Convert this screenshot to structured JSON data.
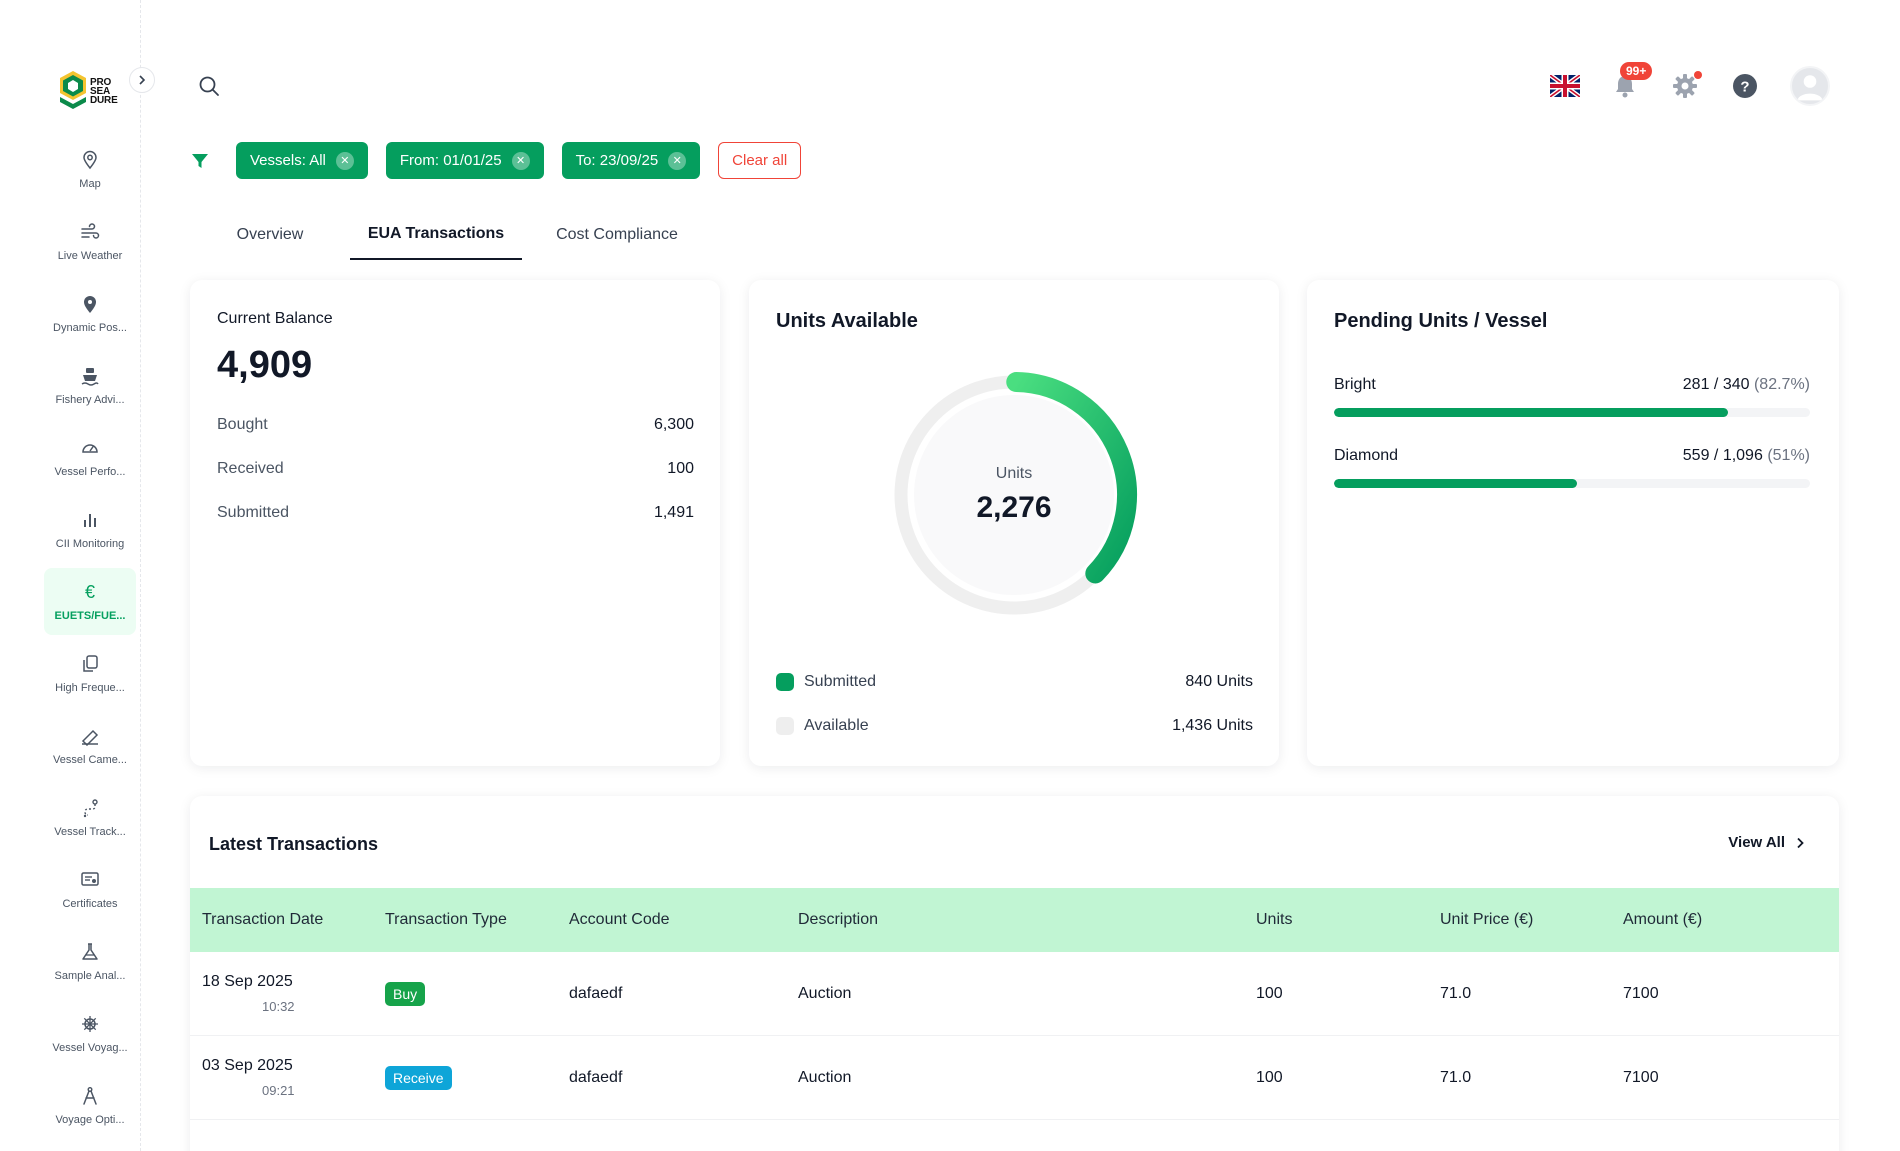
{
  "brand": {
    "logo_text": [
      "PRO",
      "SEA",
      "DURE"
    ]
  },
  "sidebar": {
    "items": [
      {
        "label": "Map",
        "icon": "map-pin-icon"
      },
      {
        "label": "Live Weather",
        "icon": "wind-icon"
      },
      {
        "label": "Dynamic Pos...",
        "icon": "location-icon"
      },
      {
        "label": "Fishery Advi...",
        "icon": "ship-icon"
      },
      {
        "label": "Vessel Perfo...",
        "icon": "gauge-icon"
      },
      {
        "label": "CII Monitoring",
        "icon": "bar-chart-icon"
      },
      {
        "label": "EUETS/FUE...",
        "icon": "euro-icon",
        "active": true
      },
      {
        "label": "High Freque...",
        "icon": "copy-icon"
      },
      {
        "label": "Vessel Came...",
        "icon": "camera-icon"
      },
      {
        "label": "Vessel Track...",
        "icon": "route-icon"
      },
      {
        "label": "Certificates",
        "icon": "certificate-icon"
      },
      {
        "label": "Sample Anal...",
        "icon": "flask-icon"
      },
      {
        "label": "Vessel Voyag...",
        "icon": "helm-icon"
      },
      {
        "label": "Voyage Opti...",
        "icon": "compass-icon"
      }
    ]
  },
  "header": {
    "notifications_badge": "99+"
  },
  "filters": {
    "chips": [
      "Vessels: All",
      "From: 01/01/25",
      "To: 23/09/25"
    ],
    "clear_label": "Clear all"
  },
  "tabs": [
    {
      "label": "Overview"
    },
    {
      "label": "EUA Transactions",
      "active": true
    },
    {
      "label": "Cost Compliance"
    }
  ],
  "balance": {
    "label": "Current Balance",
    "value": "4,909",
    "rows": [
      {
        "label": "Bought",
        "value": "6,300"
      },
      {
        "label": "Received",
        "value": "100"
      },
      {
        "label": "Submitted",
        "value": "1,491"
      }
    ]
  },
  "units_available": {
    "title": "Units Available",
    "center_label": "Units",
    "center_value": "2,276",
    "submitted_fraction": 0.369,
    "legend": [
      {
        "label": "Submitted",
        "value": "840 Units",
        "color": "#059e5e"
      },
      {
        "label": "Available",
        "value": "1,436 Units",
        "color": "#eeeeee"
      }
    ]
  },
  "pending": {
    "title": "Pending Units / Vessel",
    "vessels": [
      {
        "name": "Bright",
        "value": "281 / 340",
        "pct": "(82.7%)",
        "fraction": 0.827
      },
      {
        "name": "Diamond",
        "value": "559 / 1,096",
        "pct": "(51%)",
        "fraction": 0.51
      }
    ]
  },
  "transactions": {
    "title": "Latest Transactions",
    "view_all": "View All",
    "columns": [
      "Transaction Date",
      "Transaction Type",
      "Account Code",
      "Description",
      "Units",
      "Unit Price (€)",
      "Amount (€)"
    ],
    "rows": [
      {
        "date": "18 Sep 2025",
        "time": "10:32",
        "type": "Buy",
        "type_color": "#16a34a",
        "account": "dafaedf",
        "description": "Auction",
        "units": "100",
        "unit_price": "71.0",
        "amount": "7100"
      },
      {
        "date": "03 Sep 2025",
        "time": "09:21",
        "type": "Receive",
        "type_color": "#0ea5d8",
        "account": "dafaedf",
        "description": "Auction",
        "units": "100",
        "unit_price": "71.0",
        "amount": "7100"
      }
    ]
  },
  "colors": {
    "accent": "#059e5e",
    "accent_light": "#c1f5d3",
    "danger": "#f04438"
  }
}
